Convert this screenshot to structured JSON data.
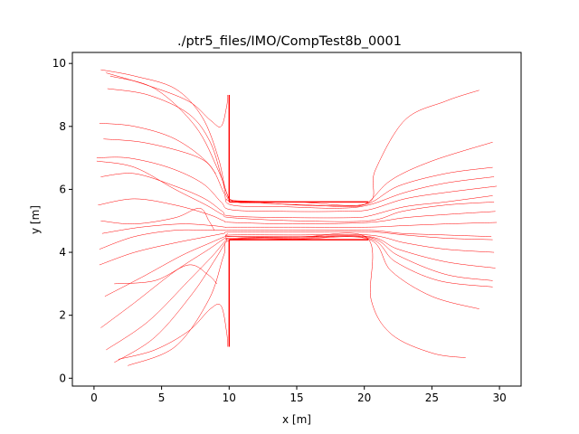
{
  "chart_data": {
    "type": "line",
    "title": "./ptr5_files/IMO/CompTest8b_0001",
    "xlabel": "x [m]",
    "ylabel": "y [m]",
    "xlim": [
      -1.6,
      31.6
    ],
    "ylim": [
      -0.25,
      10.35
    ],
    "xticks": [
      0,
      5,
      10,
      15,
      20,
      25,
      30
    ],
    "yticks": [
      0,
      2,
      4,
      6,
      8,
      10
    ],
    "grid": false,
    "legend": "none",
    "line_color": "#ff0000",
    "corridor": {
      "x_start": 10,
      "x_end": 20.3,
      "y_low": 4.4,
      "y_high": 5.6
    },
    "series": [
      {
        "x": [
          0.5,
          3,
          6,
          8,
          9.2,
          9.8,
          10.5,
          13,
          16,
          19,
          20.3,
          22,
          25,
          29.5
        ],
        "y": [
          9.8,
          9.6,
          9.2,
          8.3,
          7.0,
          5.9,
          5.6,
          5.55,
          5.5,
          5.45,
          5.6,
          6.3,
          6.9,
          7.5
        ]
      },
      {
        "x": [
          1,
          4,
          7,
          8.6,
          9.5,
          10,
          12,
          15,
          18,
          20.3,
          22.5,
          26,
          29.5
        ],
        "y": [
          9.2,
          9.0,
          8.4,
          7.5,
          6.3,
          5.7,
          5.6,
          5.5,
          5.48,
          5.55,
          6.1,
          6.5,
          6.7
        ]
      },
      {
        "x": [
          0.4,
          3,
          6,
          8.5,
          9.6,
          10.2,
          14,
          18,
          20.3,
          23,
          26,
          29.6
        ],
        "y": [
          8.1,
          8.0,
          7.6,
          6.8,
          5.9,
          5.5,
          5.45,
          5.4,
          5.5,
          5.9,
          6.2,
          6.4
        ]
      },
      {
        "x": [
          0.2,
          2.5,
          5.5,
          8,
          9.4,
          10.2,
          14,
          18,
          20.3,
          23,
          26,
          29.8
        ],
        "y": [
          7.0,
          7.0,
          6.7,
          6.2,
          5.6,
          5.35,
          5.3,
          5.3,
          5.35,
          5.7,
          5.9,
          6.1
        ]
      },
      {
        "x": [
          0.5,
          3,
          6,
          8.2,
          9.5,
          10.2,
          15,
          19,
          20.3,
          23,
          26,
          29.5
        ],
        "y": [
          6.4,
          6.5,
          6.1,
          5.7,
          5.3,
          5.15,
          5.1,
          5.1,
          5.15,
          5.45,
          5.6,
          5.8
        ]
      },
      {
        "x": [
          0.3,
          3,
          6,
          8.5,
          9.6,
          10.2,
          15,
          20.3,
          23,
          26,
          29.7
        ],
        "y": [
          5.5,
          5.7,
          5.5,
          5.2,
          5.0,
          4.95,
          4.9,
          4.95,
          5.1,
          5.2,
          5.3
        ]
      },
      {
        "x": [
          0.6,
          3.5,
          6.5,
          8.7,
          9.7,
          10.2,
          15,
          20.3,
          23,
          26,
          29.8
        ],
        "y": [
          4.6,
          4.8,
          4.9,
          4.85,
          4.8,
          4.8,
          4.8,
          4.8,
          4.85,
          4.9,
          4.95
        ]
      },
      {
        "x": [
          0.4,
          3,
          6,
          8.4,
          9.6,
          10.2,
          15,
          20.3,
          23,
          26,
          29.5
        ],
        "y": [
          3.6,
          4.0,
          4.3,
          4.5,
          4.6,
          4.65,
          4.65,
          4.65,
          4.55,
          4.45,
          4.4
        ]
      },
      {
        "x": [
          0.8,
          3.5,
          6.5,
          8.6,
          9.7,
          10.2,
          15,
          20.3,
          23,
          26,
          29.6
        ],
        "y": [
          2.6,
          3.2,
          3.9,
          4.3,
          4.5,
          4.55,
          4.55,
          4.55,
          4.3,
          4.1,
          4.0
        ]
      },
      {
        "x": [
          0.5,
          3,
          6,
          8.5,
          9.7,
          10.2,
          15,
          20.3,
          22.5,
          26,
          29.7
        ],
        "y": [
          1.6,
          2.4,
          3.4,
          4.1,
          4.45,
          4.5,
          4.5,
          4.5,
          4.1,
          3.7,
          3.5
        ]
      },
      {
        "x": [
          0.9,
          4,
          7,
          8.8,
          9.8,
          10.2,
          15,
          20.3,
          22.5,
          26,
          29.5
        ],
        "y": [
          0.9,
          1.8,
          3.1,
          3.9,
          4.4,
          4.45,
          4.48,
          4.48,
          3.9,
          3.3,
          3.1
        ]
      },
      {
        "x": [
          1.5,
          4.5,
          7.3,
          9,
          9.8,
          10.2,
          15,
          20.3,
          22.3,
          25.5,
          29.5
        ],
        "y": [
          0.5,
          1.3,
          2.7,
          3.8,
          4.35,
          4.42,
          4.45,
          4.45,
          3.7,
          3.1,
          2.9
        ]
      },
      {
        "x": [
          2.5,
          6,
          8.5,
          9.6,
          10.2,
          15,
          20.3,
          22,
          25,
          28.5
        ],
        "y": [
          0.4,
          1.0,
          2.5,
          3.9,
          4.4,
          4.42,
          4.42,
          3.4,
          2.6,
          2.2
        ]
      },
      {
        "x": [
          0.2,
          3,
          6,
          8.3,
          9.5,
          10.2,
          15,
          20.3,
          22.8,
          26,
          29.6
        ],
        "y": [
          6.9,
          6.7,
          6.0,
          5.5,
          5.2,
          5.1,
          5.0,
          5.0,
          5.3,
          5.5,
          5.6
        ]
      },
      {
        "x": [
          0.4,
          3,
          6,
          8.4,
          9.6,
          10.2,
          15,
          20.3,
          22.8,
          26,
          29.4
        ],
        "y": [
          4.1,
          4.5,
          4.7,
          4.7,
          4.7,
          4.7,
          4.7,
          4.7,
          4.6,
          4.55,
          4.5
        ]
      },
      {
        "x": [
          1.2,
          4.5,
          7.5,
          9.2,
          9.9,
          10.2,
          15,
          20.2,
          20.8,
          23,
          26,
          28.5
        ],
        "y": [
          9.6,
          9.2,
          8.0,
          6.6,
          5.8,
          5.65,
          5.6,
          5.55,
          6.6,
          8.2,
          8.8,
          9.15
        ]
      },
      {
        "x": [
          9.9,
          10.2,
          15,
          20.2,
          20.5,
          22,
          25,
          27.5
        ],
        "y": [
          4.6,
          4.5,
          4.48,
          4.46,
          2.5,
          1.4,
          0.8,
          0.65
        ]
      },
      {
        "x": [
          1.8,
          4.5,
          7,
          8.6,
          9.4,
          9.8,
          9.9
        ],
        "y": [
          0.6,
          0.9,
          1.5,
          2.2,
          2.3,
          1.5,
          1.0
        ]
      },
      {
        "x": [
          0.9,
          4,
          7,
          8.6,
          9.4,
          9.8,
          9.9
        ],
        "y": [
          9.7,
          9.3,
          8.8,
          8.2,
          8.0,
          8.6,
          9.0
        ]
      },
      {
        "x": [
          0.5,
          3,
          6,
          7.8,
          8.5,
          8.9
        ],
        "y": [
          5.0,
          4.9,
          5.1,
          5.4,
          5.0,
          4.7
        ]
      },
      {
        "x": [
          1.5,
          4.5,
          7,
          8.4,
          9.1
        ],
        "y": [
          3.0,
          3.1,
          3.6,
          3.3,
          3.0
        ]
      },
      {
        "x": [
          0.7,
          3.5,
          6.5,
          8.2,
          9.0
        ],
        "y": [
          7.6,
          7.5,
          7.2,
          6.9,
          6.5
        ]
      }
    ]
  }
}
